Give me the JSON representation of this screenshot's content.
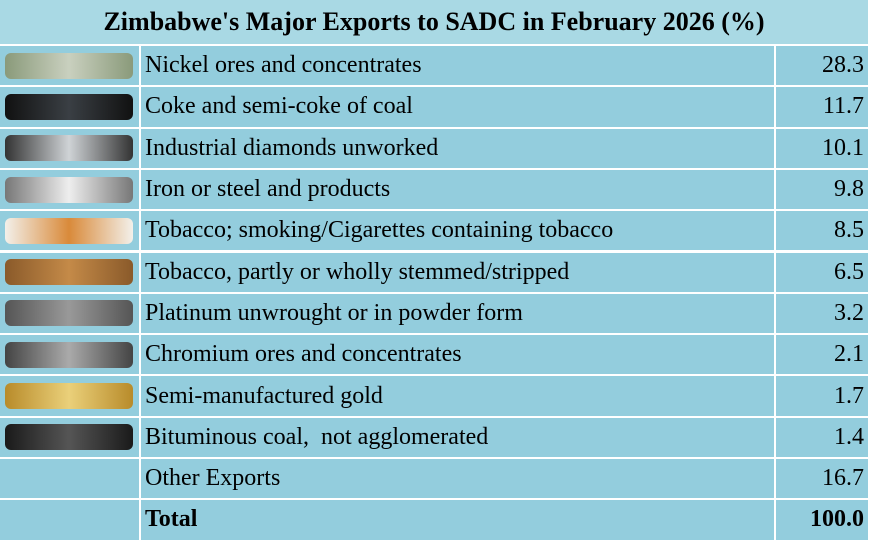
{
  "title": "Zimbabwe's Major Exports to SADC in February 2026 (%)",
  "rows": [
    {
      "label": "Nickel ores and concentrates",
      "value": "28.3"
    },
    {
      "label": "Coke and semi-coke of coal",
      "value": "11.7"
    },
    {
      "label": "Industrial diamonds unworked",
      "value": "10.1"
    },
    {
      "label": "Iron or steel and products",
      "value": "9.8"
    },
    {
      "label": "Tobacco; smoking/Cigarettes containing tobacco",
      "value": "8.5"
    },
    {
      "label": "Tobacco, partly or wholly stemmed/stripped",
      "value": "6.5"
    },
    {
      "label": "Platinum unwrought or in powder form",
      "value": "3.2"
    },
    {
      "label": "Chromium ores and concentrates",
      "value": "2.1"
    },
    {
      "label": "Semi-manufactured gold",
      "value": "1.7"
    },
    {
      "label": "Bituminous coal,  not agglomerated",
      "value": "1.4"
    },
    {
      "label": "Other Exports",
      "value": "16.7"
    }
  ],
  "total": {
    "label": "Total",
    "value": "100.0"
  }
}
